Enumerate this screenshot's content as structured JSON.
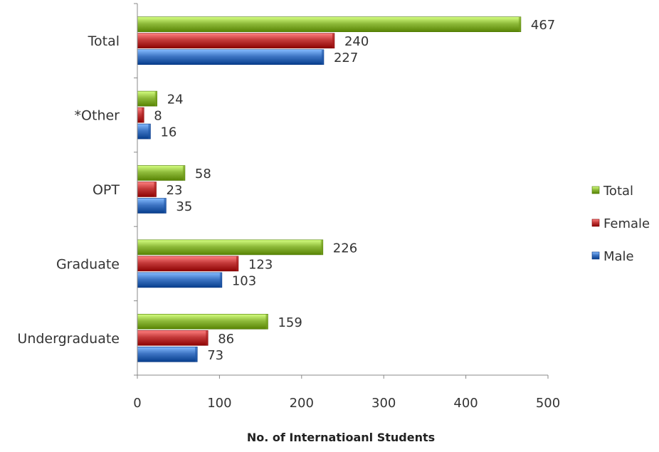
{
  "chart_data": {
    "type": "bar",
    "orientation": "horizontal",
    "categories": [
      "Undergraduate",
      "Graduate",
      "OPT",
      "*Other",
      "Total"
    ],
    "series": [
      {
        "name": "Male",
        "values": [
          73,
          103,
          35,
          16,
          227
        ],
        "color": "#3e75c4"
      },
      {
        "name": "Female",
        "values": [
          86,
          123,
          23,
          8,
          240
        ],
        "color": "#c43a3a"
      },
      {
        "name": "Total",
        "values": [
          159,
          226,
          58,
          24,
          467
        ],
        "color": "#8fbb3b"
      }
    ],
    "xlabel": "No. of Internatioanl Students",
    "ylabel": "",
    "title": "",
    "xlim": [
      0,
      500
    ],
    "xticks": [
      0,
      100,
      200,
      300,
      400,
      500
    ],
    "grid": false,
    "legend": {
      "position": "right",
      "entries": [
        "Total",
        "Female",
        "Male"
      ]
    },
    "data_labels": true
  }
}
